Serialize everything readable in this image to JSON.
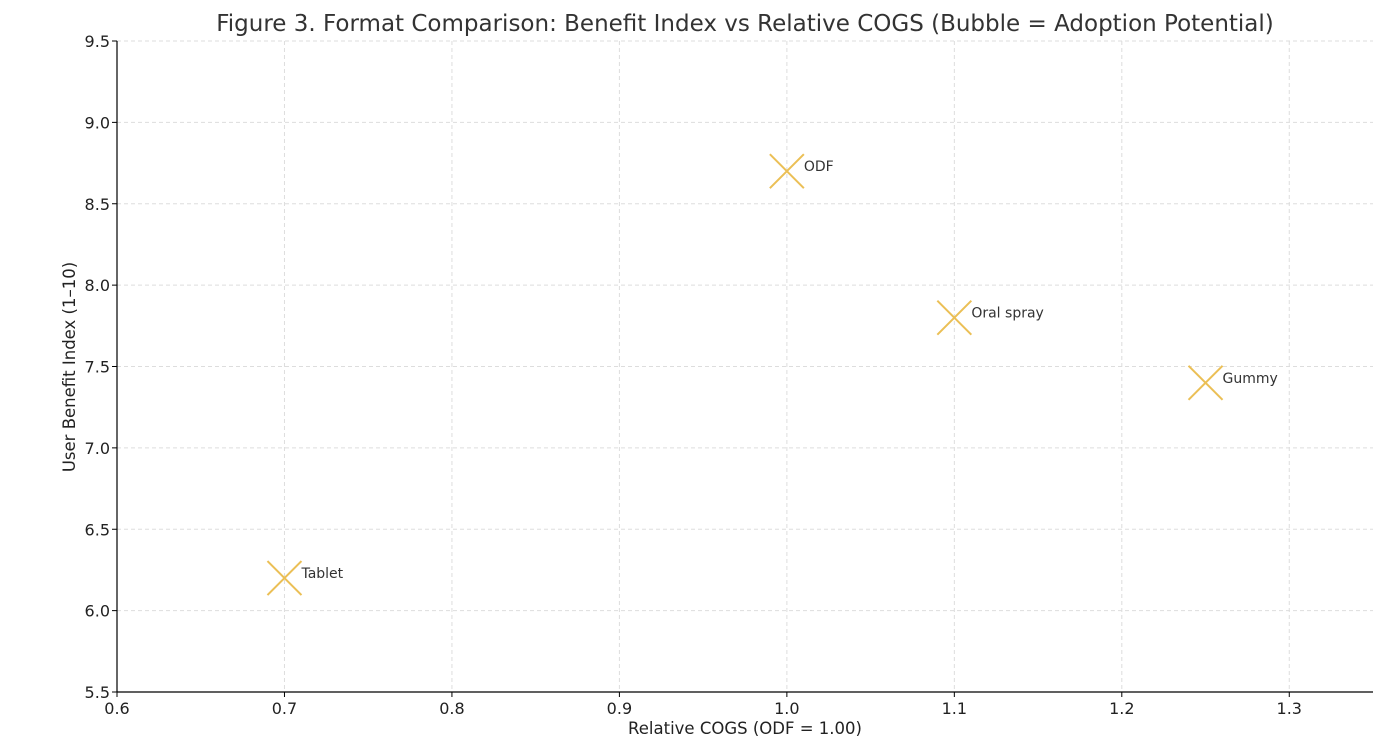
{
  "chart_data": {
    "type": "scatter",
    "title": "Figure 3. Format Comparison: Benefit Index vs Relative COGS (Bubble = Adoption Potential)",
    "xlabel": "Relative COGS (ODF = 1.00)",
    "ylabel": "User Benefit Index (1–10)",
    "xlim": [
      0.6,
      1.35
    ],
    "ylim": [
      5.5,
      9.5
    ],
    "xticks": [
      "0.6",
      "0.7",
      "0.8",
      "0.9",
      "1.0",
      "1.1",
      "1.2",
      "1.3"
    ],
    "yticks": [
      "5.5",
      "6.0",
      "6.5",
      "7.0",
      "7.5",
      "8.0",
      "8.5",
      "9.0",
      "9.5"
    ],
    "grid": true,
    "marker": "x",
    "color": "#ebbf55",
    "points": [
      {
        "label": "ODF",
        "x": 1.0,
        "y": 8.7
      },
      {
        "label": "Oral spray",
        "x": 1.1,
        "y": 7.8
      },
      {
        "label": "Gummy",
        "x": 1.25,
        "y": 7.4
      },
      {
        "label": "Tablet",
        "x": 0.7,
        "y": 6.2
      }
    ]
  }
}
